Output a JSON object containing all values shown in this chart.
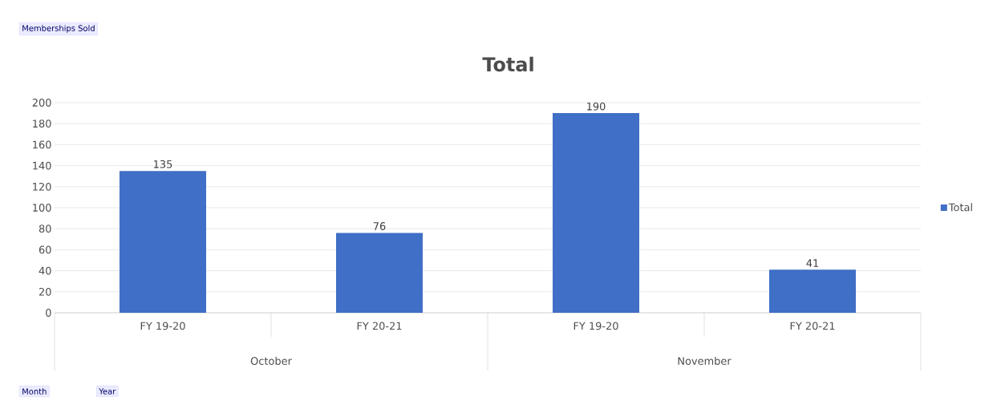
{
  "chart_data": {
    "type": "bar",
    "title": "Total",
    "categories": [
      "FY 19-20",
      "FY 20-21",
      "FY 19-20",
      "FY 20-21"
    ],
    "series": [
      {
        "name": "Total",
        "color": "#3f6fc6",
        "values": [
          135,
          76,
          190,
          41
        ]
      }
    ],
    "ylim": [
      0,
      200
    ],
    "yticks": [
      0,
      20,
      40,
      60,
      80,
      100,
      120,
      140,
      160,
      180,
      200
    ],
    "grid": "y",
    "legend": "right",
    "data_labels": true,
    "annotations": [
      "Memberships Sold",
      "October",
      "November",
      "Month",
      "Year"
    ]
  }
}
